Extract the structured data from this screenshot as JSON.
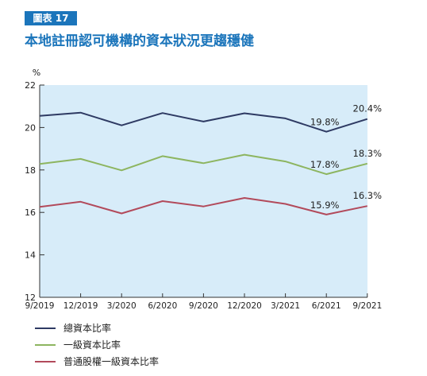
{
  "figure": {
    "badge": "圖表 17",
    "title": "本地註冊認可機構的資本狀況更趨穩健"
  },
  "chart_data": {
    "type": "line",
    "ylabel": "%",
    "ylim": [
      12,
      22
    ],
    "yticks": [
      12,
      14,
      16,
      18,
      20,
      22
    ],
    "categories": [
      "9/2019",
      "12/2019",
      "3/2020",
      "6/2020",
      "9/2020",
      "12/2020",
      "3/2021",
      "6/2021",
      "9/2021"
    ],
    "series": [
      {
        "name": "總資本比率",
        "color": "#2e3a63",
        "values": [
          20.55,
          20.7,
          20.1,
          20.68,
          20.28,
          20.67,
          20.43,
          19.8,
          20.4
        ]
      },
      {
        "name": "一級資本比率",
        "color": "#8db560",
        "values": [
          18.28,
          18.52,
          17.98,
          18.65,
          18.32,
          18.72,
          18.4,
          17.8,
          18.3
        ]
      },
      {
        "name": "普通股權一級資本比率",
        "color": "#b24a5b",
        "values": [
          16.26,
          16.5,
          15.95,
          16.53,
          16.28,
          16.68,
          16.4,
          15.9,
          16.3
        ]
      }
    ],
    "annotations": [
      {
        "series": 0,
        "index": 7,
        "text": "19.8%"
      },
      {
        "series": 0,
        "index": 8,
        "text": "20.4%"
      },
      {
        "series": 1,
        "index": 7,
        "text": "17.8%"
      },
      {
        "series": 1,
        "index": 8,
        "text": "18.3%"
      },
      {
        "series": 2,
        "index": 7,
        "text": "15.9%"
      },
      {
        "series": 2,
        "index": 8,
        "text": "16.3%"
      }
    ],
    "plot_background": "#d7ecf9",
    "grid": false,
    "legend_position": "bottom-left"
  }
}
